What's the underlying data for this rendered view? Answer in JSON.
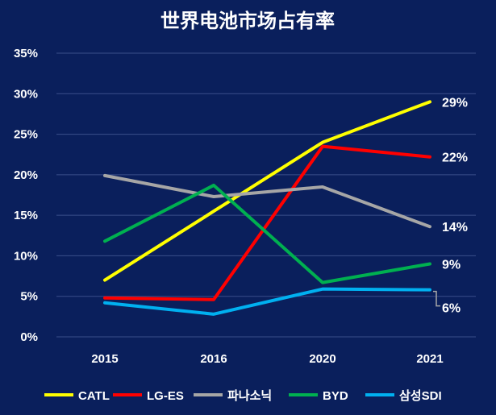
{
  "chart_data": {
    "type": "line",
    "title": "世界电池市场占有率",
    "xlabel": "",
    "ylabel": "",
    "categories": [
      "2015",
      "2016",
      "2020",
      "2021"
    ],
    "ylim": [
      0,
      35
    ],
    "yticks": [
      0,
      5,
      10,
      15,
      20,
      25,
      30,
      35
    ],
    "ytick_labels": [
      "0%",
      "5%",
      "10%",
      "15%",
      "20%",
      "25%",
      "30%",
      "35%"
    ],
    "grid": true,
    "legend_position": "bottom",
    "series": [
      {
        "name": "CATL",
        "color": "#ffff00",
        "values": [
          7.0,
          15.5,
          24.0,
          29.0
        ],
        "end_label": "29%"
      },
      {
        "name": "LG-ES",
        "color": "#ff0000",
        "values": [
          4.8,
          4.6,
          23.5,
          22.2
        ],
        "end_label": "22%"
      },
      {
        "name": "파나소닉",
        "color": "#a6a6a6",
        "values": [
          19.9,
          17.3,
          18.5,
          13.6
        ],
        "end_label": "14%"
      },
      {
        "name": "BYD",
        "color": "#00b050",
        "values": [
          11.8,
          18.7,
          6.7,
          9.0
        ],
        "end_label": "9%"
      },
      {
        "name": "삼성SDI",
        "color": "#00b0f0",
        "values": [
          4.2,
          2.8,
          5.9,
          5.8
        ],
        "end_label": "6%"
      }
    ]
  }
}
